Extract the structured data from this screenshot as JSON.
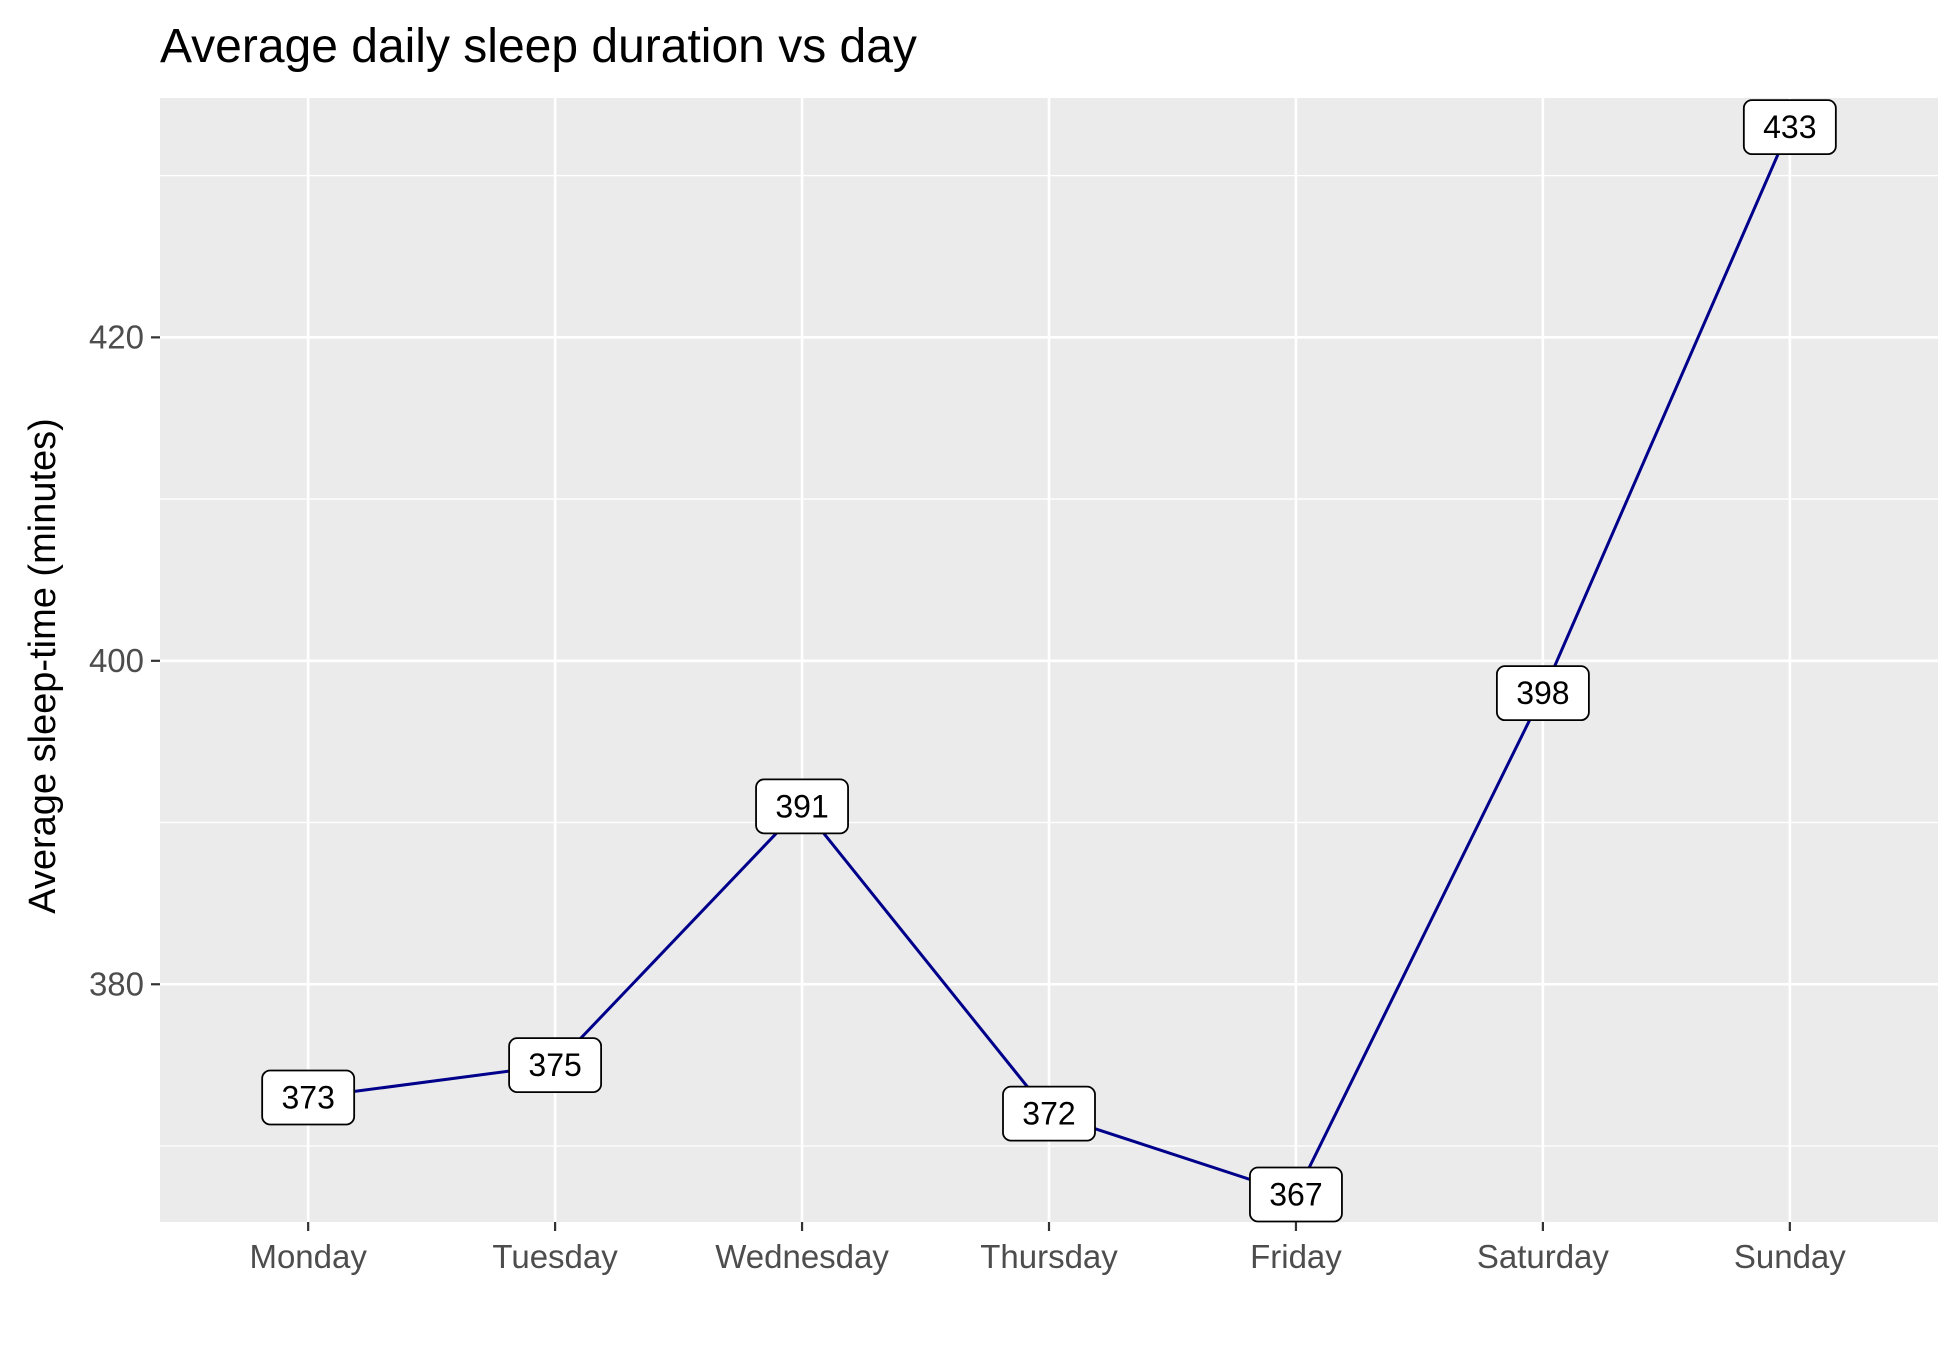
{
  "chart_data": {
    "type": "line",
    "title": "Average daily sleep duration vs day",
    "xlabel": "",
    "ylabel": "Average sleep-time (minutes)",
    "categories": [
      "Monday",
      "Tuesday",
      "Wednesday",
      "Thursday",
      "Friday",
      "Saturday",
      "Sunday"
    ],
    "series": [
      {
        "values": [
          373,
          375,
          391,
          372,
          367,
          398,
          433
        ],
        "color": "#00008b",
        "labels": [
          "373",
          "375",
          "391",
          "372",
          "367",
          "398",
          "433"
        ]
      }
    ],
    "ylim": [
      365.3,
      434.8
    ],
    "yticks": [
      380,
      400,
      420
    ],
    "yticks_minor": [
      370,
      390,
      410,
      430
    ],
    "grid": true,
    "panel_background": "#ebebeb",
    "grid_color": "#ffffff",
    "legend": "none"
  }
}
